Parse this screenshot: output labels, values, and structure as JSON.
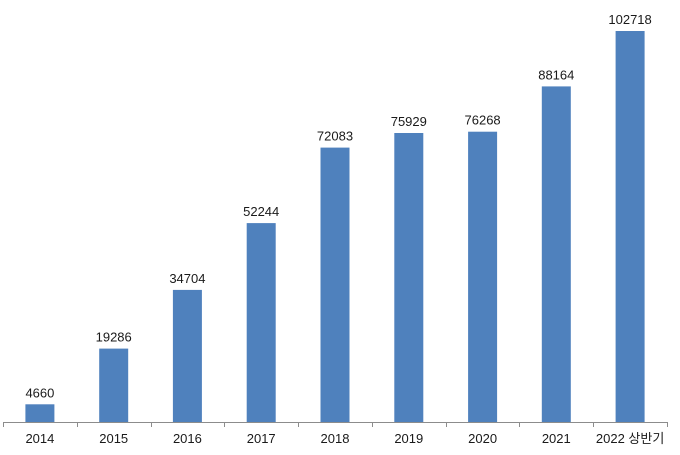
{
  "chart_data": {
    "type": "bar",
    "categories": [
      "2014",
      "2015",
      "2016",
      "2017",
      "2018",
      "2019",
      "2020",
      "2021",
      "2022 상반기"
    ],
    "values": [
      4660,
      19286,
      34704,
      52244,
      72083,
      75929,
      76268,
      88164,
      102718
    ],
    "ylim": [
      0,
      102718
    ],
    "grid": false,
    "legend": "none",
    "bar_color": "#4F81BD",
    "axis_color": "#8c8c8c"
  }
}
